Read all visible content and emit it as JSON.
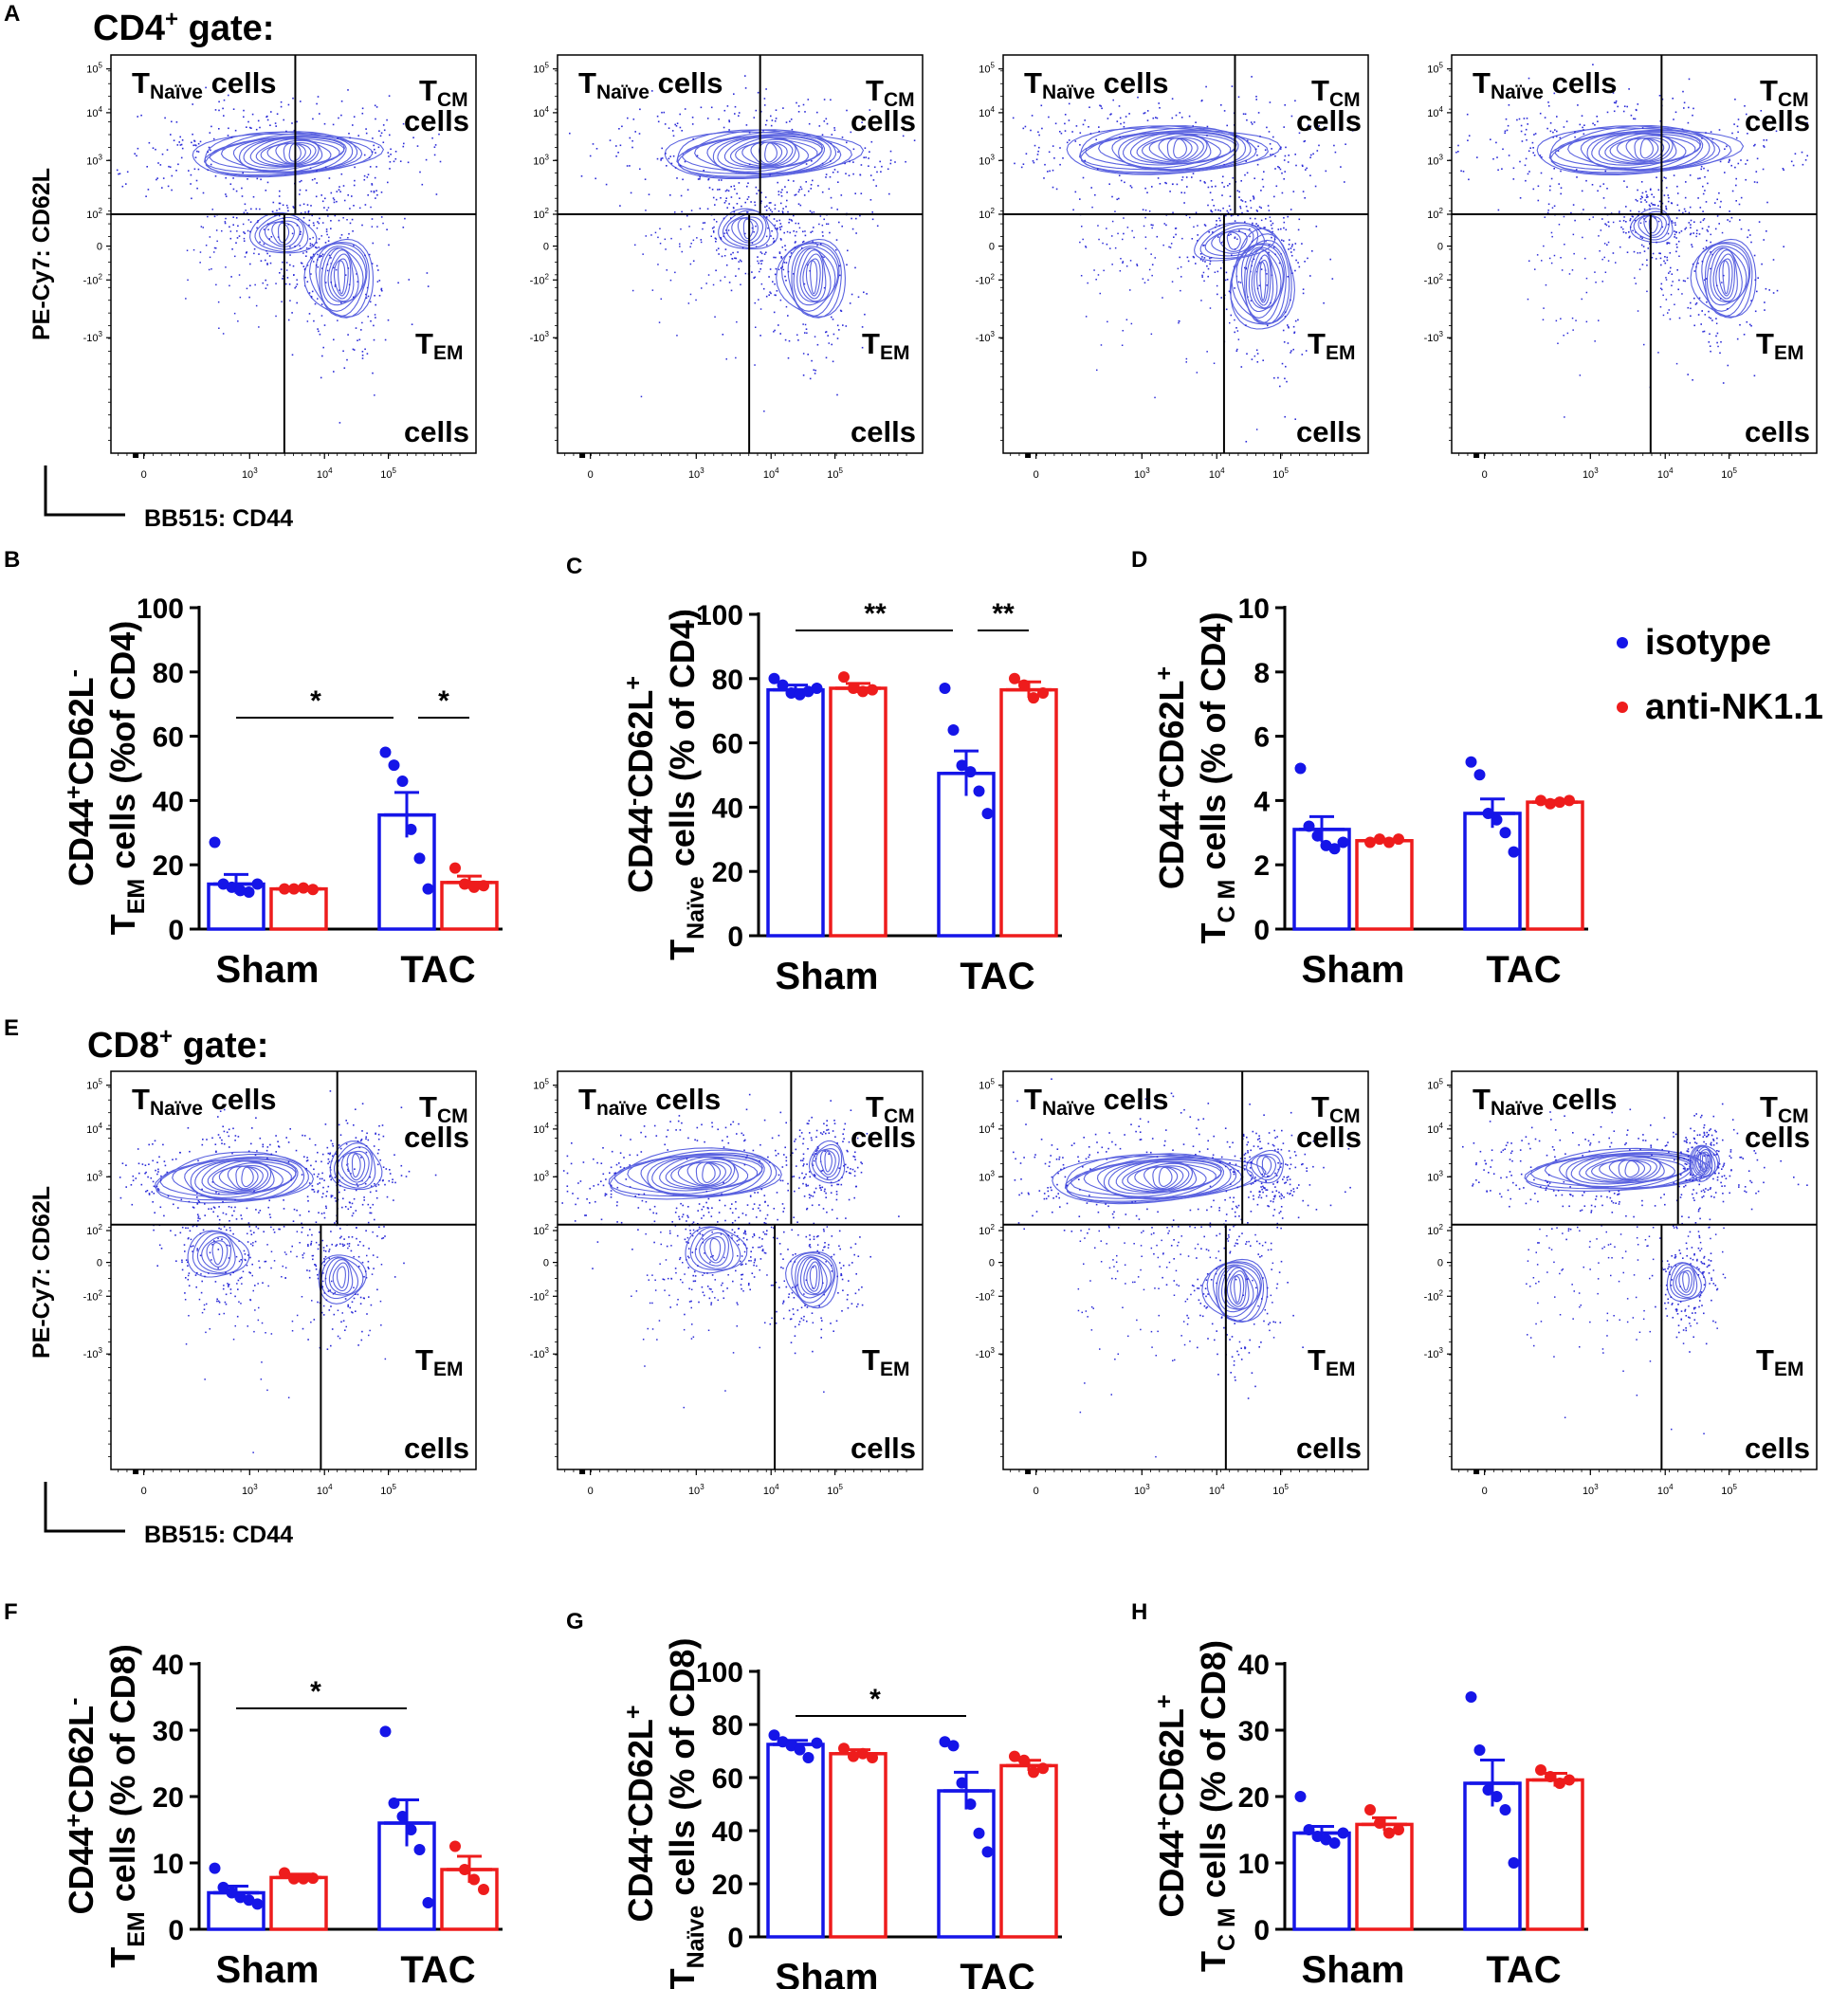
{
  "figure": {
    "panel_labels": [
      "A",
      "B",
      "C",
      "D",
      "E",
      "F",
      "G",
      "H"
    ],
    "gate_titles": {
      "cd4": "CD4",
      "cd8": "CD8",
      "sup": "+",
      "suffix": " gate:"
    },
    "quadrant_labels": {
      "t": "T",
      "naive_sub": "Naïve",
      "naive_sub_lower": "naïve",
      "cells": " cells",
      "cells_line": "cells",
      "cm_sub": "CM",
      "em_sub": "EM"
    },
    "flow_axes": {
      "y_label": "PE-Cy7: CD62L",
      "x_label": "BB515: CD44",
      "x_ticks": [
        {
          "b": "0",
          "e": ""
        },
        {
          "b": "10",
          "e": "3"
        },
        {
          "b": "10",
          "e": "4"
        },
        {
          "b": "10",
          "e": "5"
        }
      ],
      "y_ticks": [
        {
          "b": "10",
          "e": "5"
        },
        {
          "b": "10",
          "e": "4"
        },
        {
          "b": "10",
          "e": "3"
        },
        {
          "b": "10",
          "e": "2"
        },
        {
          "b": "0",
          "e": ""
        },
        {
          "b": "-10",
          "e": "2"
        },
        {
          "b": "-10",
          "e": "3"
        }
      ]
    },
    "legend": [
      {
        "label": "isotype",
        "color": "#1515e8"
      },
      {
        "label": "anti-NK1.1",
        "color": "#ee1c1c"
      }
    ],
    "colors": {
      "isotype": "#1515e8",
      "anti": "#ee1c1c",
      "contour": "#5b63e0",
      "dots": "#2b2bd8"
    }
  },
  "chart_data": [
    {
      "panel": "B",
      "type": "bar",
      "y_label_parts": [
        "T",
        "EM",
        " cells (%of CD4)"
      ],
      "y_title": [
        "CD44",
        "+",
        "CD62L",
        "-"
      ],
      "categories": [
        "Sham",
        "TAC"
      ],
      "ylim": [
        0,
        100
      ],
      "yticks": [
        0,
        20,
        40,
        60,
        80,
        100
      ],
      "series": [
        {
          "name": "isotype",
          "means": [
            14,
            35.5
          ],
          "sem": [
            3,
            7
          ],
          "points": [
            [
              27,
              14,
              13,
              12,
              11.5,
              14
            ],
            [
              55,
              51,
              46,
              31,
              22,
              12.5
            ]
          ]
        },
        {
          "name": "anti-NK1.1",
          "means": [
            12.5,
            14.5
          ],
          "sem": [
            0.5,
            2
          ],
          "points": [
            [
              12.5,
              12.5,
              12.8,
              12.3
            ],
            [
              19,
              14,
              13,
              13.5
            ]
          ]
        }
      ],
      "significance": [
        {
          "label": "*",
          "from": [
            0,
            0
          ],
          "to": [
            1,
            0
          ]
        },
        {
          "label": "*",
          "from": [
            1,
            0
          ],
          "to": [
            1,
            1
          ]
        }
      ]
    },
    {
      "panel": "C",
      "type": "bar",
      "y_label_parts": [
        "T",
        "Naïve",
        " cells (% of CD4)"
      ],
      "y_title": [
        "CD44",
        "-",
        "CD62L",
        "+"
      ],
      "categories": [
        "Sham",
        "TAC"
      ],
      "ylim": [
        0,
        100
      ],
      "yticks": [
        0,
        20,
        40,
        60,
        80,
        100
      ],
      "series": [
        {
          "name": "isotype",
          "means": [
            76.5,
            50.5
          ],
          "sem": [
            1.5,
            7
          ],
          "points": [
            [
              80,
              78,
              75.5,
              75,
              76,
              77
            ],
            [
              77,
              64,
              53,
              51,
              45,
              38
            ]
          ]
        },
        {
          "name": "anti-NK1.1",
          "means": [
            77,
            76.5
          ],
          "sem": [
            1.5,
            2.5
          ],
          "points": [
            [
              80.5,
              77,
              76,
              76.5
            ],
            [
              80,
              78,
              74,
              75.5
            ]
          ]
        }
      ],
      "significance": [
        {
          "label": "**",
          "from": [
            0,
            0
          ],
          "to": [
            1,
            0
          ]
        },
        {
          "label": "**",
          "from": [
            1,
            0
          ],
          "to": [
            1,
            1
          ]
        }
      ]
    },
    {
      "panel": "D",
      "type": "bar",
      "y_label_parts": [
        "T",
        "C M",
        " cells (% of CD4)"
      ],
      "y_title": [
        "CD44",
        "+",
        "CD62L",
        "+"
      ],
      "categories": [
        "Sham",
        "TAC"
      ],
      "ylim": [
        0,
        10
      ],
      "yticks": [
        0,
        2,
        4,
        6,
        8,
        10
      ],
      "series": [
        {
          "name": "isotype",
          "means": [
            3.1,
            3.6
          ],
          "sem": [
            0.4,
            0.45
          ],
          "points": [
            [
              5.0,
              3.2,
              2.9,
              2.6,
              2.5,
              2.7
            ],
            [
              5.2,
              4.8,
              3.6,
              3.4,
              3.0,
              2.4
            ]
          ]
        },
        {
          "name": "anti-NK1.1",
          "means": [
            2.75,
            3.95
          ],
          "sem": [
            0.05,
            0.05
          ],
          "points": [
            [
              2.7,
              2.8,
              2.7,
              2.8
            ],
            [
              4.0,
              3.9,
              3.95,
              4.0
            ]
          ]
        }
      ],
      "significance": []
    },
    {
      "panel": "F",
      "type": "bar",
      "y_label_parts": [
        "T",
        "EM",
        " cells (% of CD8)"
      ],
      "y_title": [
        "CD44",
        "+",
        "CD62L",
        "-"
      ],
      "categories": [
        "Sham",
        "TAC"
      ],
      "ylim": [
        0,
        40
      ],
      "yticks": [
        0,
        10,
        20,
        30,
        40
      ],
      "series": [
        {
          "name": "isotype",
          "means": [
            5.5,
            16
          ],
          "sem": [
            1,
            3.5
          ],
          "points": [
            [
              9.2,
              6.3,
              5.5,
              4.8,
              4.4,
              3.8
            ],
            [
              29.8,
              19,
              17,
              15,
              12,
              4
            ]
          ]
        },
        {
          "name": "anti-NK1.1",
          "means": [
            7.8,
            9
          ],
          "sem": [
            0.5,
            2
          ],
          "points": [
            [
              8.5,
              7.6,
              7.6,
              7.7
            ],
            [
              12.5,
              9,
              7.5,
              6
            ]
          ]
        }
      ],
      "significance": [
        {
          "label": "*",
          "from": [
            0,
            0
          ],
          "to": [
            1,
            0
          ]
        }
      ]
    },
    {
      "panel": "G",
      "type": "bar",
      "y_label_parts": [
        "T",
        "Naïve",
        " cells (% of CD8)"
      ],
      "y_title": [
        "CD44",
        "-",
        "CD62L",
        "+"
      ],
      "categories": [
        "Sham",
        "TAC"
      ],
      "ylim": [
        0,
        100
      ],
      "yticks": [
        0,
        20,
        40,
        60,
        80,
        100
      ],
      "series": [
        {
          "name": "isotype",
          "means": [
            72.5,
            55
          ],
          "sem": [
            1.5,
            7
          ],
          "points": [
            [
              76,
              73.5,
              72,
              70.5,
              67.5,
              73
            ],
            [
              73.5,
              72,
              58,
              50,
              39,
              32
            ]
          ]
        },
        {
          "name": "anti-NK1.1",
          "means": [
            69,
            64.5
          ],
          "sem": [
            1.5,
            2
          ],
          "points": [
            [
              71,
              68,
              69,
              67.5
            ],
            [
              68,
              66.5,
              62,
              63.5
            ]
          ]
        }
      ],
      "significance": [
        {
          "label": "*",
          "from": [
            0,
            0
          ],
          "to": [
            1,
            0
          ]
        }
      ]
    },
    {
      "panel": "H",
      "type": "bar",
      "y_label_parts": [
        "T",
        "C M",
        " cells (% of CD8)"
      ],
      "y_title": [
        "CD44",
        "+",
        "CD62L",
        "+"
      ],
      "categories": [
        "Sham",
        "TAC"
      ],
      "ylim": [
        0,
        40
      ],
      "yticks": [
        0,
        10,
        20,
        30,
        40
      ],
      "series": [
        {
          "name": "isotype",
          "means": [
            14.5,
            22
          ],
          "sem": [
            1,
            3.5
          ],
          "points": [
            [
              20,
              15,
              14,
              13.5,
              13,
              14.5
            ],
            [
              35,
              27,
              21,
              20,
              18,
              10
            ]
          ]
        },
        {
          "name": "anti-NK1.1",
          "means": [
            15.8,
            22.5
          ],
          "sem": [
            1,
            1
          ],
          "points": [
            [
              18,
              16,
              14.5,
              15
            ],
            [
              24,
              23,
              22,
              22.5
            ]
          ]
        }
      ],
      "significance": []
    }
  ]
}
